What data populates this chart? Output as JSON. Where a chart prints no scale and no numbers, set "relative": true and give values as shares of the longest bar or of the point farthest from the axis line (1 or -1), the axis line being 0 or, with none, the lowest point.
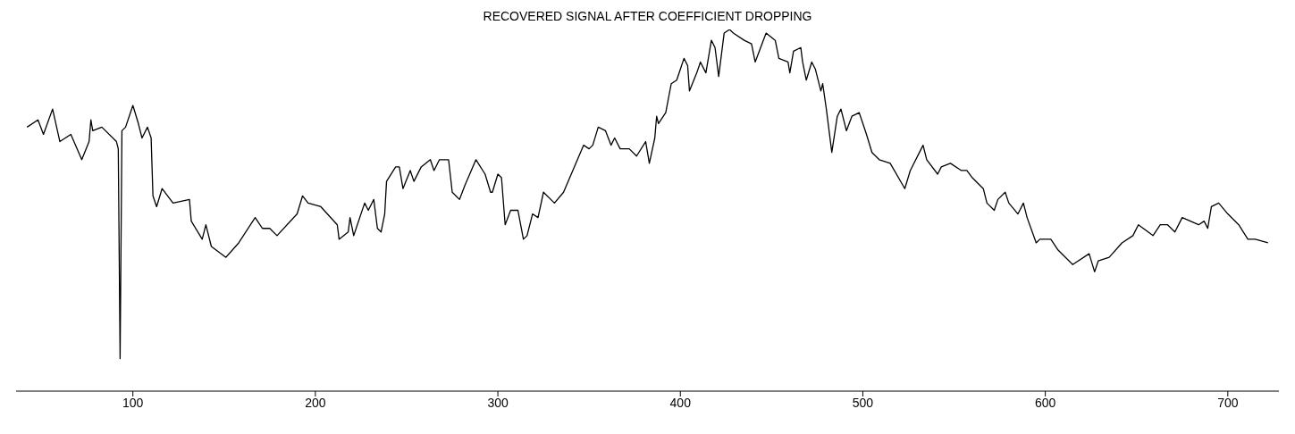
{
  "chart_data": {
    "type": "line",
    "title": "RECOVERED SIGNAL AFTER COEFFICIENT DROPPING",
    "relative": true,
    "marker": "none",
    "line_style": "solid",
    "grid": false,
    "legend": false,
    "xlim": [
      36,
      728
    ],
    "xticks": [
      100,
      200,
      300,
      400,
      500,
      600,
      700
    ],
    "series": [
      {
        "color": "#000000",
        "x": [
          42,
          48,
          51,
          56,
          60,
          66,
          72,
          76,
          77,
          78,
          83,
          91,
          92,
          93,
          94,
          96,
          100,
          103,
          105,
          108,
          110,
          111,
          113,
          116,
          122,
          131,
          132,
          138,
          140,
          143,
          151,
          158,
          167,
          171,
          175,
          179,
          190,
          193,
          196,
          203,
          212,
          213,
          218,
          219,
          221,
          227,
          229,
          232,
          234,
          236,
          238,
          239,
          244,
          246,
          248,
          252,
          254,
          258,
          263,
          265,
          268,
          273,
          275,
          279,
          282,
          288,
          293,
          296,
          297,
          300,
          302,
          304,
          307,
          311,
          314,
          316,
          319,
          322,
          325,
          331,
          336,
          347,
          350,
          352,
          355,
          359,
          362,
          364,
          367,
          372,
          376,
          381,
          383,
          386,
          387,
          388,
          392,
          395,
          398,
          402,
          404,
          405,
          409,
          411,
          414,
          417,
          419,
          421,
          424,
          427,
          429,
          435,
          439,
          441,
          447,
          452,
          454,
          459,
          460,
          462,
          466,
          467,
          469,
          472,
          474,
          477,
          478,
          480,
          483,
          486,
          488,
          491,
          494,
          498,
          500,
          502,
          505,
          509,
          515,
          523,
          526,
          533,
          535,
          541,
          543,
          548,
          554,
          557,
          560,
          566,
          568,
          572,
          574,
          578,
          580,
          585,
          588,
          590,
          595,
          597,
          603,
          607,
          615,
          624,
          627,
          629,
          635,
          642,
          648,
          651,
          659,
          663,
          667,
          671,
          675,
          684,
          687,
          689,
          691,
          695,
          700,
          706,
          711,
          715,
          722
        ],
        "values": [
          0.73,
          0.75,
          0.71,
          0.78,
          0.69,
          0.71,
          0.64,
          0.69,
          0.75,
          0.72,
          0.73,
          0.69,
          0.67,
          0.09,
          0.72,
          0.73,
          0.79,
          0.74,
          0.7,
          0.73,
          0.7,
          0.54,
          0.51,
          0.56,
          0.52,
          0.53,
          0.47,
          0.42,
          0.46,
          0.4,
          0.37,
          0.41,
          0.48,
          0.45,
          0.45,
          0.43,
          0.49,
          0.54,
          0.52,
          0.51,
          0.46,
          0.42,
          0.44,
          0.48,
          0.43,
          0.52,
          0.5,
          0.53,
          0.45,
          0.44,
          0.49,
          0.58,
          0.62,
          0.62,
          0.56,
          0.61,
          0.58,
          0.62,
          0.64,
          0.61,
          0.64,
          0.64,
          0.55,
          0.53,
          0.57,
          0.64,
          0.6,
          0.55,
          0.55,
          0.6,
          0.59,
          0.46,
          0.5,
          0.5,
          0.42,
          0.43,
          0.49,
          0.48,
          0.55,
          0.52,
          0.55,
          0.68,
          0.67,
          0.68,
          0.73,
          0.72,
          0.68,
          0.7,
          0.67,
          0.67,
          0.65,
          0.69,
          0.63,
          0.7,
          0.76,
          0.74,
          0.77,
          0.85,
          0.86,
          0.92,
          0.9,
          0.83,
          0.88,
          0.91,
          0.88,
          0.97,
          0.95,
          0.87,
          0.99,
          1,
          0.99,
          0.97,
          0.96,
          0.91,
          0.99,
          0.97,
          0.92,
          0.91,
          0.88,
          0.94,
          0.95,
          0.91,
          0.86,
          0.91,
          0.89,
          0.83,
          0.85,
          0.78,
          0.66,
          0.76,
          0.78,
          0.72,
          0.76,
          0.77,
          0.74,
          0.71,
          0.66,
          0.64,
          0.63,
          0.56,
          0.61,
          0.68,
          0.64,
          0.6,
          0.62,
          0.63,
          0.61,
          0.61,
          0.59,
          0.56,
          0.52,
          0.5,
          0.53,
          0.55,
          0.52,
          0.49,
          0.52,
          0.48,
          0.41,
          0.42,
          0.42,
          0.39,
          0.35,
          0.38,
          0.33,
          0.36,
          0.37,
          0.41,
          0.43,
          0.46,
          0.43,
          0.46,
          0.46,
          0.44,
          0.48,
          0.46,
          0.47,
          0.45,
          0.51,
          0.52,
          0.49,
          0.46,
          0.42,
          0.42,
          0.41
        ]
      }
    ]
  }
}
